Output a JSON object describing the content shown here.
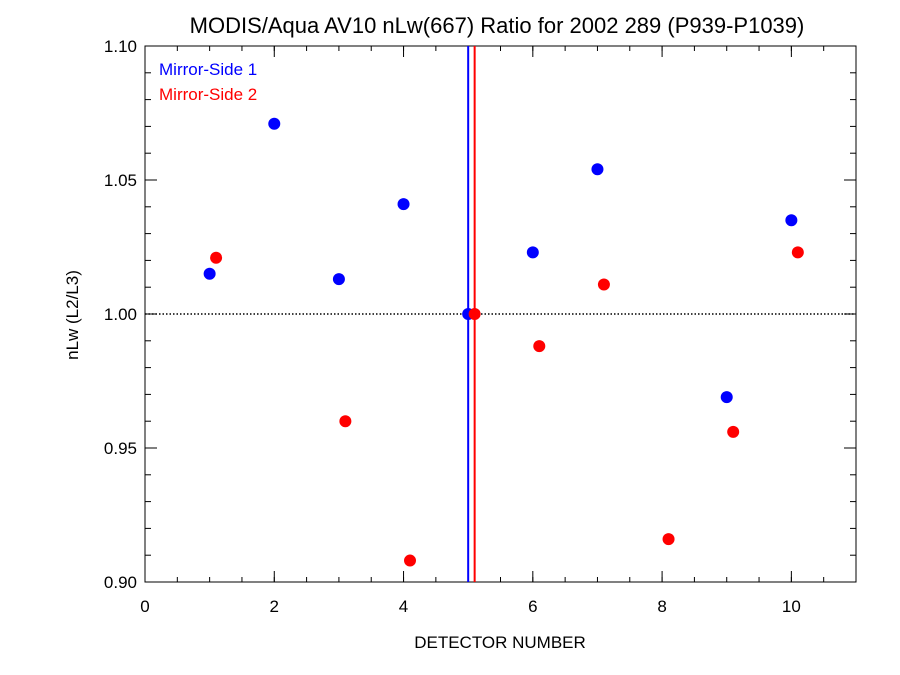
{
  "chart_data": {
    "type": "scatter",
    "title": "MODIS/Aqua AV10 nLw(667) Ratio for 2002 289 (P939-P1039)",
    "xlabel": "DETECTOR NUMBER",
    "ylabel": "nLw (L2/L3)",
    "xlim": [
      0,
      11
    ],
    "ylim": [
      0.9,
      1.1
    ],
    "x_ticks": [
      0,
      2,
      4,
      6,
      8,
      10
    ],
    "y_ticks": [
      0.9,
      0.95,
      1.0,
      1.05,
      1.1
    ],
    "x_tick_labels": [
      "0",
      "2",
      "4",
      "6",
      "8",
      "10"
    ],
    "y_tick_labels": [
      "0.90",
      "0.95",
      "1.00",
      "1.05",
      "1.10"
    ],
    "reference_line": {
      "y": 1.0,
      "style": "dotted",
      "color": "#000000"
    },
    "legend_position": "top-left",
    "series": [
      {
        "name": "Mirror-Side 1",
        "color": "#0000ff",
        "x": [
          1,
          2,
          3,
          4,
          5,
          6,
          7,
          9,
          10
        ],
        "y": [
          1.015,
          1.071,
          1.013,
          1.041,
          1.0,
          1.023,
          1.054,
          0.969,
          1.035
        ],
        "vline_x": 5.0
      },
      {
        "name": "Mirror-Side 2",
        "color": "#ff0000",
        "x": [
          1.1,
          3.1,
          4.1,
          5.1,
          6.1,
          7.1,
          8.1,
          9.1,
          10.1
        ],
        "y": [
          1.021,
          0.96,
          0.908,
          1.0,
          0.988,
          1.011,
          0.916,
          0.956,
          1.023
        ],
        "vline_x": 5.1
      }
    ]
  }
}
